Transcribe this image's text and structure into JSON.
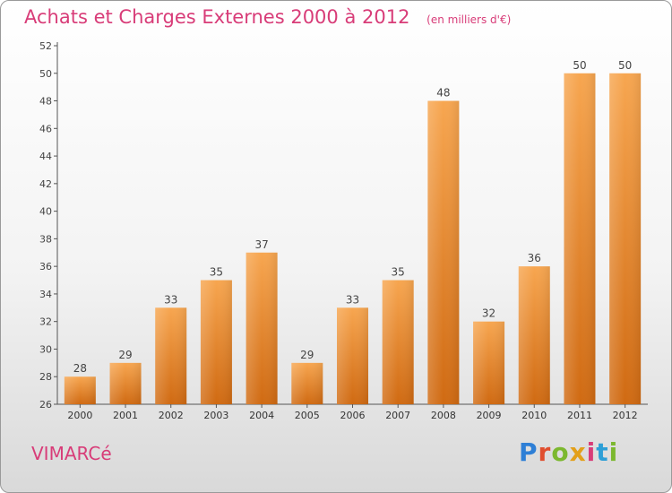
{
  "header": {
    "title": "Achats et Charges Externes 2000 à 2012",
    "unit": "(en milliers d'€)"
  },
  "footer": {
    "commune": "VIMARCé",
    "brand_letters": [
      "P",
      "r",
      "o",
      "x",
      "i",
      "t",
      "i"
    ],
    "brand_colors": [
      "#2e7fd6",
      "#e04f2f",
      "#7cb82f",
      "#e3a01a",
      "#d83c78",
      "#2e9fd6",
      "#7cb82f"
    ]
  },
  "chart_data": {
    "type": "bar",
    "categories": [
      "2000",
      "2001",
      "2002",
      "2003",
      "2004",
      "2005",
      "2006",
      "2007",
      "2008",
      "2009",
      "2010",
      "2011",
      "2012"
    ],
    "values": [
      28,
      29,
      33,
      35,
      37,
      29,
      33,
      35,
      48,
      32,
      36,
      50,
      50
    ],
    "ylim": [
      26,
      52
    ],
    "yticks": [
      26,
      28,
      30,
      32,
      34,
      36,
      38,
      40,
      42,
      44,
      46,
      48,
      50,
      52
    ],
    "grid": false,
    "bar_color_top": "#f7a650",
    "bar_color_bottom": "#d06a12"
  }
}
